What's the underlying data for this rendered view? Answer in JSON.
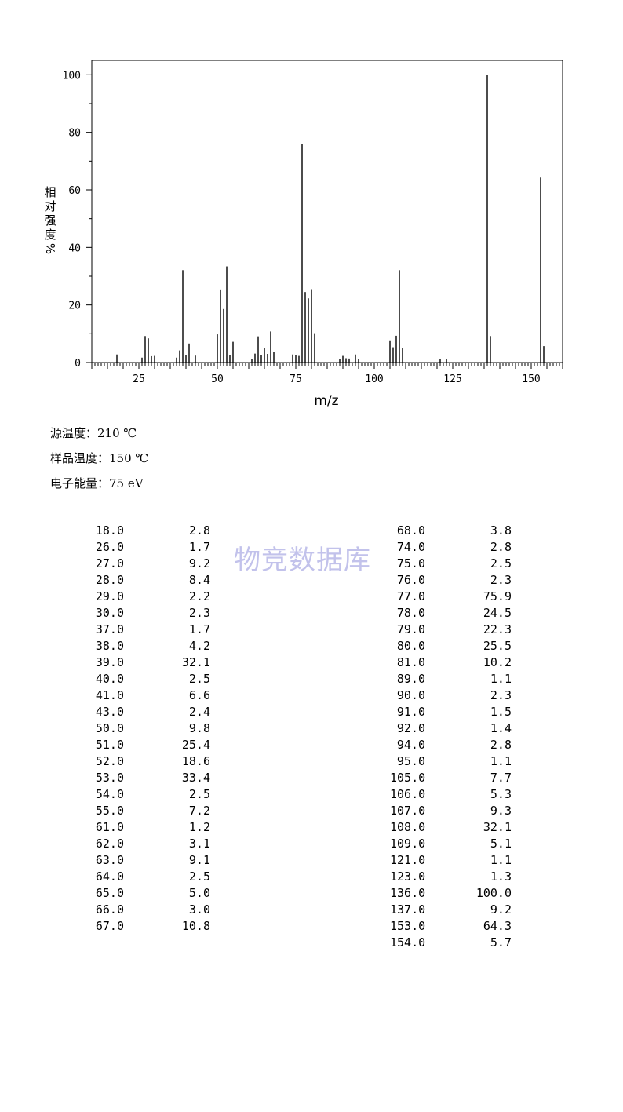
{
  "chart_data": {
    "type": "bar",
    "xlabel": "m/z",
    "ylabel": "相对强度/%",
    "ylabel_chars": [
      "相",
      "对",
      "强",
      "度",
      "%"
    ],
    "xlim": [
      10,
      160
    ],
    "ylim": [
      0,
      105
    ],
    "xticks": [
      25,
      50,
      75,
      100,
      125,
      150
    ],
    "yticks": [
      0,
      20,
      40,
      60,
      80,
      100
    ],
    "peaks": [
      {
        "mz": 18.0,
        "i": 2.8
      },
      {
        "mz": 26.0,
        "i": 1.7
      },
      {
        "mz": 27.0,
        "i": 9.2
      },
      {
        "mz": 28.0,
        "i": 8.4
      },
      {
        "mz": 29.0,
        "i": 2.2
      },
      {
        "mz": 30.0,
        "i": 2.3
      },
      {
        "mz": 37.0,
        "i": 1.7
      },
      {
        "mz": 38.0,
        "i": 4.2
      },
      {
        "mz": 39.0,
        "i": 32.1
      },
      {
        "mz": 40.0,
        "i": 2.5
      },
      {
        "mz": 41.0,
        "i": 6.6
      },
      {
        "mz": 43.0,
        "i": 2.4
      },
      {
        "mz": 50.0,
        "i": 9.8
      },
      {
        "mz": 51.0,
        "i": 25.4
      },
      {
        "mz": 52.0,
        "i": 18.6
      },
      {
        "mz": 53.0,
        "i": 33.4
      },
      {
        "mz": 54.0,
        "i": 2.5
      },
      {
        "mz": 55.0,
        "i": 7.2
      },
      {
        "mz": 61.0,
        "i": 1.2
      },
      {
        "mz": 62.0,
        "i": 3.1
      },
      {
        "mz": 63.0,
        "i": 9.1
      },
      {
        "mz": 64.0,
        "i": 2.5
      },
      {
        "mz": 65.0,
        "i": 5.0
      },
      {
        "mz": 66.0,
        "i": 3.0
      },
      {
        "mz": 67.0,
        "i": 10.8
      },
      {
        "mz": 68.0,
        "i": 3.8
      },
      {
        "mz": 74.0,
        "i": 2.8
      },
      {
        "mz": 75.0,
        "i": 2.5
      },
      {
        "mz": 76.0,
        "i": 2.3
      },
      {
        "mz": 77.0,
        "i": 75.9
      },
      {
        "mz": 78.0,
        "i": 24.5
      },
      {
        "mz": 79.0,
        "i": 22.3
      },
      {
        "mz": 80.0,
        "i": 25.5
      },
      {
        "mz": 81.0,
        "i": 10.2
      },
      {
        "mz": 89.0,
        "i": 1.1
      },
      {
        "mz": 90.0,
        "i": 2.3
      },
      {
        "mz": 91.0,
        "i": 1.5
      },
      {
        "mz": 92.0,
        "i": 1.4
      },
      {
        "mz": 94.0,
        "i": 2.8
      },
      {
        "mz": 95.0,
        "i": 1.1
      },
      {
        "mz": 105.0,
        "i": 7.7
      },
      {
        "mz": 106.0,
        "i": 5.3
      },
      {
        "mz": 107.0,
        "i": 9.3
      },
      {
        "mz": 108.0,
        "i": 32.1
      },
      {
        "mz": 109.0,
        "i": 5.1
      },
      {
        "mz": 121.0,
        "i": 1.1
      },
      {
        "mz": 123.0,
        "i": 1.3
      },
      {
        "mz": 136.0,
        "i": 100.0
      },
      {
        "mz": 137.0,
        "i": 9.2
      },
      {
        "mz": 153.0,
        "i": 64.3
      },
      {
        "mz": 154.0,
        "i": 5.7
      }
    ]
  },
  "conditions": {
    "source_temp": "源温度：210 ℃",
    "sample_temp": "样品温度：150 ℃",
    "electron_energy": "电子能量：75 eV"
  },
  "watermark": "物竞数据库",
  "table": {
    "left": [
      [
        "18.0",
        "2.8"
      ],
      [
        "26.0",
        "1.7"
      ],
      [
        "27.0",
        "9.2"
      ],
      [
        "28.0",
        "8.4"
      ],
      [
        "29.0",
        "2.2"
      ],
      [
        "30.0",
        "2.3"
      ],
      [
        "37.0",
        "1.7"
      ],
      [
        "38.0",
        "4.2"
      ],
      [
        "39.0",
        "32.1"
      ],
      [
        "40.0",
        "2.5"
      ],
      [
        "41.0",
        "6.6"
      ],
      [
        "43.0",
        "2.4"
      ],
      [
        "50.0",
        "9.8"
      ],
      [
        "51.0",
        "25.4"
      ],
      [
        "52.0",
        "18.6"
      ],
      [
        "53.0",
        "33.4"
      ],
      [
        "54.0",
        "2.5"
      ],
      [
        "55.0",
        "7.2"
      ],
      [
        "61.0",
        "1.2"
      ],
      [
        "62.0",
        "3.1"
      ],
      [
        "63.0",
        "9.1"
      ],
      [
        "64.0",
        "2.5"
      ],
      [
        "65.0",
        "5.0"
      ],
      [
        "66.0",
        "3.0"
      ],
      [
        "67.0",
        "10.8"
      ]
    ],
    "right": [
      [
        "68.0",
        "3.8"
      ],
      [
        "74.0",
        "2.8"
      ],
      [
        "75.0",
        "2.5"
      ],
      [
        "76.0",
        "2.3"
      ],
      [
        "77.0",
        "75.9"
      ],
      [
        "78.0",
        "24.5"
      ],
      [
        "79.0",
        "22.3"
      ],
      [
        "80.0",
        "25.5"
      ],
      [
        "81.0",
        "10.2"
      ],
      [
        "89.0",
        "1.1"
      ],
      [
        "90.0",
        "2.3"
      ],
      [
        "91.0",
        "1.5"
      ],
      [
        "92.0",
        "1.4"
      ],
      [
        "94.0",
        "2.8"
      ],
      [
        "95.0",
        "1.1"
      ],
      [
        "105.0",
        "7.7"
      ],
      [
        "106.0",
        "5.3"
      ],
      [
        "107.0",
        "9.3"
      ],
      [
        "108.0",
        "32.1"
      ],
      [
        "109.0",
        "5.1"
      ],
      [
        "121.0",
        "1.1"
      ],
      [
        "123.0",
        "1.3"
      ],
      [
        "136.0",
        "100.0"
      ],
      [
        "137.0",
        "9.2"
      ],
      [
        "153.0",
        "64.3"
      ],
      [
        "154.0",
        "5.7"
      ]
    ]
  }
}
